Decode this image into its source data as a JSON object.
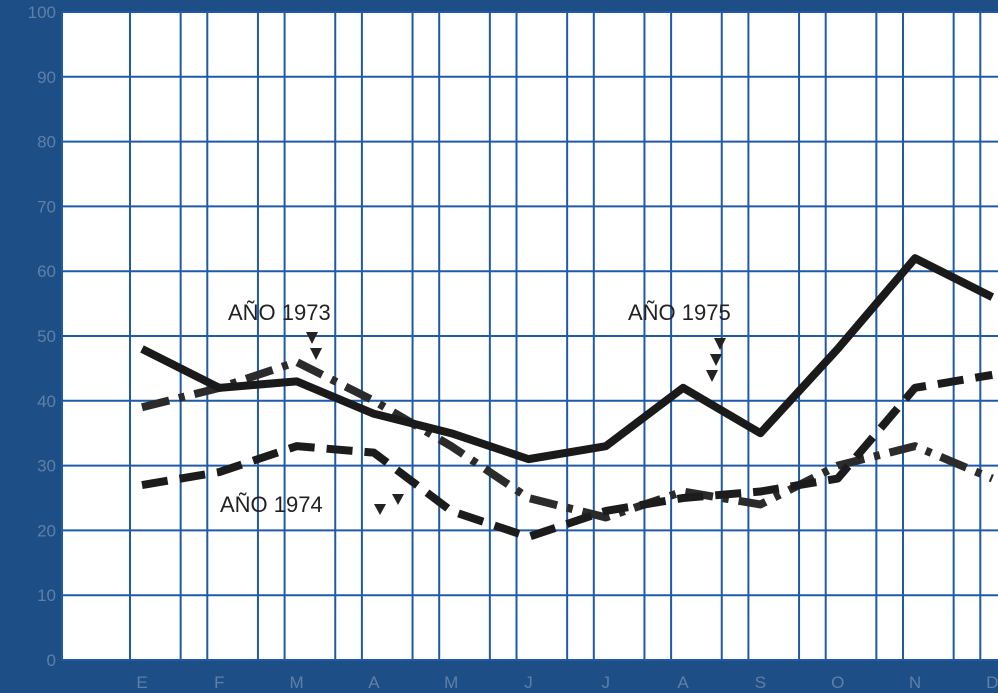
{
  "chart_data": {
    "type": "line",
    "categories": [
      "E",
      "F",
      "M",
      "A",
      "M",
      "J",
      "J",
      "A",
      "S",
      "O",
      "N",
      "D"
    ],
    "ylim": [
      0,
      100
    ],
    "yticks": [
      0,
      10,
      20,
      30,
      40,
      50,
      60,
      70,
      80,
      90,
      100
    ],
    "grid": true,
    "series": [
      {
        "name": "AÑO 1973",
        "style": "dash-dot",
        "color": "#2b2b2b",
        "values": [
          39,
          42,
          46,
          40,
          33,
          25,
          22,
          26,
          24,
          30,
          33,
          28
        ]
      },
      {
        "name": "AÑO 1974",
        "style": "dashed",
        "color": "#1c1c1c",
        "values": [
          27,
          29,
          33,
          32,
          23,
          19,
          23,
          25,
          26,
          28,
          42,
          44
        ]
      },
      {
        "name": "AÑO 1975",
        "style": "solid",
        "color": "#1a1a1a",
        "values": [
          48,
          42,
          43,
          38,
          35,
          31,
          33,
          42,
          35,
          48,
          62,
          56
        ]
      }
    ],
    "annotations": [
      {
        "text": "AÑO 1973",
        "series": 0
      },
      {
        "text": "AÑO 1974",
        "series": 1
      },
      {
        "text": "AÑO 1975",
        "series": 2
      }
    ]
  }
}
